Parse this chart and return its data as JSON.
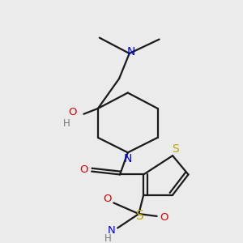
{
  "background_color": "#ebebeb",
  "bond_color": "#1a1a1a",
  "atom_colors": {
    "N": "#0000ee",
    "O": "#dd0000",
    "S": "#bbaa00",
    "H": "#777777",
    "C": "#1a1a1a"
  },
  "lw": 1.6,
  "fontsize": 9.5
}
